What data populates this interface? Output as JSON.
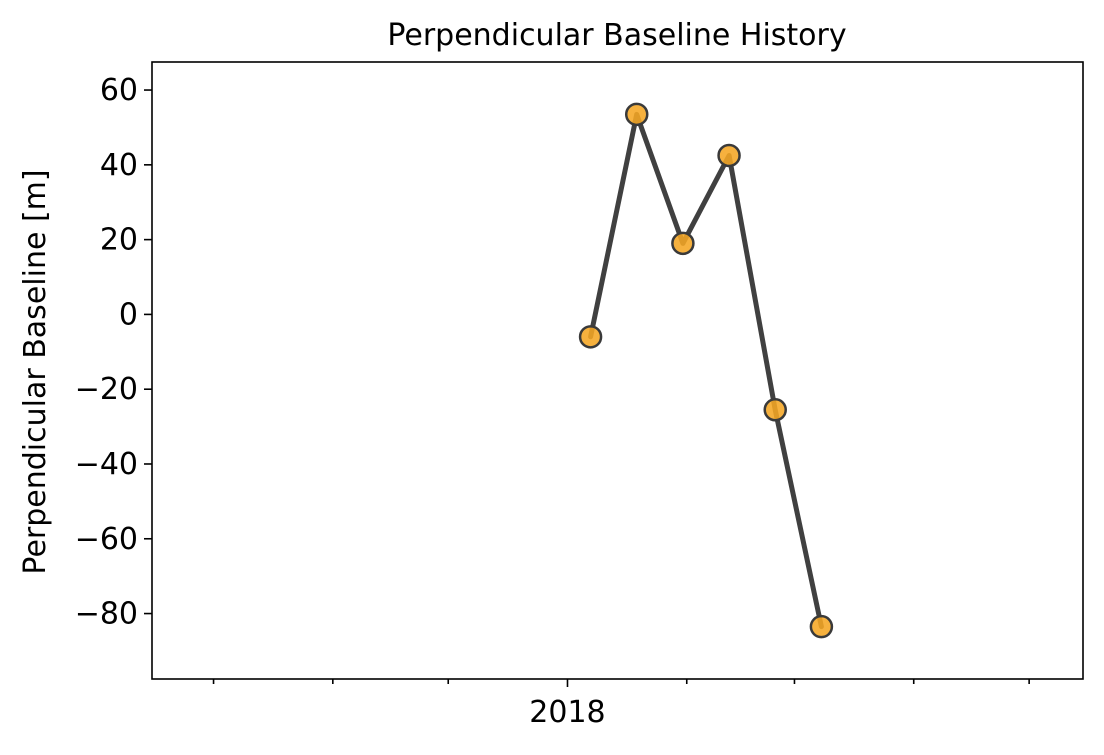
{
  "chart_data": {
    "type": "line",
    "title": "Perpendicular Baseline History",
    "xlabel": "",
    "ylabel": "Perpendicular Baseline [m]",
    "ylim": [
      -97.5,
      67.5
    ],
    "xlim": [
      "2017-09-15",
      "2018-05-15"
    ],
    "x_tick_labels": [
      "2018"
    ],
    "y_ticks": [
      60,
      40,
      20,
      0,
      -20,
      -40,
      -60,
      -80
    ],
    "y_tick_labels": [
      "60",
      "40",
      "20",
      "0",
      "−20",
      "−40",
      "−60",
      "−80"
    ],
    "grid": false,
    "line_color": "#404040",
    "marker_color": "#f5a623",
    "marker_edge_color": "#3a3a3a",
    "series": [
      {
        "x": [
          "2018-01-07",
          "2018-01-19",
          "2018-01-31",
          "2018-02-12",
          "2018-02-24",
          "2018-03-08"
        ],
        "values": [
          -6,
          53.5,
          19,
          42.5,
          -25.5,
          -83.5
        ]
      }
    ]
  }
}
